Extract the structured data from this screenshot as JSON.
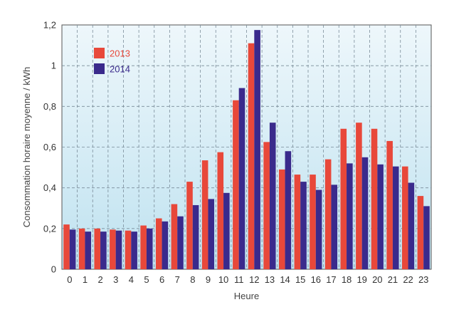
{
  "chart_data": {
    "type": "bar",
    "categories": [
      "0",
      "1",
      "2",
      "3",
      "4",
      "5",
      "6",
      "7",
      "8",
      "9",
      "10",
      "11",
      "12",
      "13",
      "14",
      "15",
      "16",
      "17",
      "18",
      "19",
      "20",
      "21",
      "22",
      "23"
    ],
    "series": [
      {
        "name": "2013",
        "color": "#e8483a",
        "values": [
          0.22,
          0.2,
          0.2,
          0.195,
          0.19,
          0.215,
          0.25,
          0.32,
          0.43,
          0.535,
          0.575,
          0.83,
          1.11,
          0.625,
          0.49,
          0.465,
          0.465,
          0.54,
          0.69,
          0.72,
          0.69,
          0.63,
          0.505,
          0.36
        ]
      },
      {
        "name": "2014",
        "color": "#3a2a8c",
        "values": [
          0.195,
          0.185,
          0.185,
          0.19,
          0.185,
          0.2,
          0.235,
          0.26,
          0.315,
          0.345,
          0.375,
          0.89,
          1.175,
          0.72,
          0.58,
          0.43,
          0.39,
          0.415,
          0.52,
          0.55,
          0.515,
          0.505,
          0.425,
          0.31
        ]
      }
    ],
    "xlabel": "Heure",
    "ylabel": "Consommation horaire moyenne / kWh",
    "ylim": [
      0,
      1.2
    ],
    "yticks": [
      0,
      0.2,
      0.4,
      0.6,
      0.8,
      1,
      1.2
    ],
    "ytick_labels": [
      "0",
      "0,2",
      "0,4",
      "0,6",
      "0,8",
      "1",
      "1,2"
    ],
    "grid": true,
    "legend_position": "top-left",
    "background_gradient": [
      "#eef7fb",
      "#bfe2f0"
    ]
  }
}
